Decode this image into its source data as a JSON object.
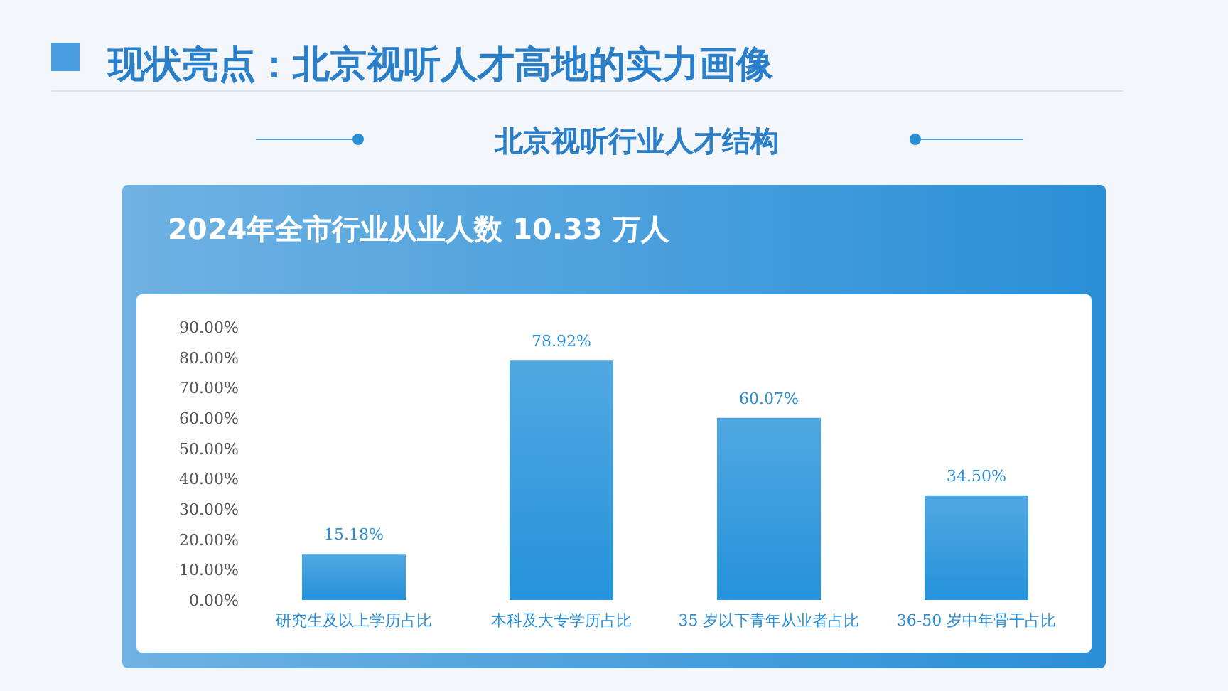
{
  "chart_data": {
    "type": "bar",
    "title": "现状亮点：北京视听人才高地的实力画像",
    "subtitle": "北京视听行业人才结构",
    "annotations": [
      "2024年全市行业从业人数 10.33 万人"
    ],
    "categories": [
      "研究生及以上学历占比",
      "本科及大专学历占比",
      "35 岁以下青年从业者占比",
      "36-50 岁中年骨干占比"
    ],
    "values": [
      15.18,
      78.92,
      60.07,
      34.5
    ],
    "value_labels": [
      "15.18%",
      "78.92%",
      "60.07%",
      "34.50%"
    ],
    "color": "#2592da",
    "ylim": [
      0,
      90
    ],
    "yticks": [
      {
        "value": 0,
        "label": "0.00%"
      },
      {
        "value": 10,
        "label": "10.00%"
      },
      {
        "value": 20,
        "label": "20.00%"
      },
      {
        "value": 30,
        "label": "30.00%"
      },
      {
        "value": 40,
        "label": "40.00%"
      },
      {
        "value": 50,
        "label": "50.00%"
      },
      {
        "value": 60,
        "label": "60.00%"
      },
      {
        "value": 70,
        "label": "70.00%"
      },
      {
        "value": 80,
        "label": "80.00%"
      },
      {
        "value": 90,
        "label": "90.00%"
      }
    ],
    "grid": false
  }
}
